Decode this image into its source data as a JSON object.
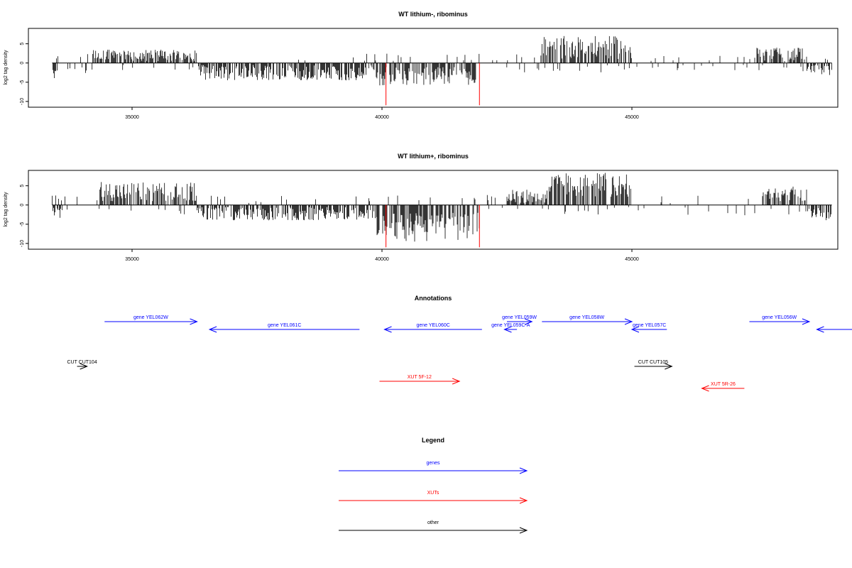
{
  "colors": {
    "gene": "#0000ff",
    "xut": "#ff0000",
    "other": "#000000",
    "signal": "#000000",
    "highlight": "#ff0000"
  },
  "chart_data": [
    {
      "type": "bar",
      "title": "WT lithium-, ribominus",
      "ylabel": "log2 tag density",
      "xlim": [
        33200,
        49300
      ],
      "ylim": [
        -11.5,
        9
      ],
      "yticks": [
        5,
        0,
        -5,
        -10
      ],
      "xticks": [
        35000,
        40000,
        45000
      ],
      "segments": [
        {
          "from": 33400,
          "to": 33500,
          "mode": "neg",
          "sMin": 0.5,
          "sMax": 4
        },
        {
          "from": 33500,
          "to": 34200,
          "mode": "sparse",
          "sMin": 0.5,
          "sMax": 3
        },
        {
          "from": 34200,
          "to": 36300,
          "mode": "pos",
          "sMin": 0.5,
          "sMax": 3.5
        },
        {
          "from": 36300,
          "to": 39800,
          "mode": "neg",
          "sMin": 0.5,
          "sMax": 4.5
        },
        {
          "from": 39800,
          "to": 41900,
          "mode": "neg",
          "sMin": 1,
          "sMax": 6
        },
        {
          "from": 41900,
          "to": 43200,
          "mode": "sparse",
          "sMin": 0.5,
          "sMax": 2.5
        },
        {
          "from": 43200,
          "to": 45000,
          "mode": "pos",
          "sMin": 1,
          "sMax": 7
        },
        {
          "from": 45000,
          "to": 47500,
          "mode": "sparse",
          "sMin": 0.5,
          "sMax": 2
        },
        {
          "from": 47500,
          "to": 48500,
          "mode": "pos",
          "sMin": 0.5,
          "sMax": 4
        },
        {
          "from": 48500,
          "to": 49000,
          "mode": "neg",
          "sMin": 0.5,
          "sMax": 4
        }
      ],
      "highlights": [
        {
          "x": 40080,
          "y": -11
        },
        {
          "x": 41950,
          "y": -11
        }
      ]
    },
    {
      "type": "bar",
      "title": "WT lithium+, ribominus",
      "ylabel": "log2 tag density",
      "xlim": [
        33200,
        49300
      ],
      "ylim": [
        -11.5,
        9
      ],
      "yticks": [
        5,
        0,
        -5,
        -10
      ],
      "xticks": [
        35000,
        40000,
        45000
      ],
      "segments": [
        {
          "from": 33400,
          "to": 33600,
          "mode": "neg",
          "sMin": 0.5,
          "sMax": 5
        },
        {
          "from": 33600,
          "to": 34300,
          "mode": "sparse",
          "sMin": 0.5,
          "sMax": 2.5
        },
        {
          "from": 34300,
          "to": 36300,
          "mode": "pos",
          "sMin": 1,
          "sMax": 6
        },
        {
          "from": 36300,
          "to": 39900,
          "mode": "neg",
          "sMin": 0.5,
          "sMax": 4
        },
        {
          "from": 39900,
          "to": 41950,
          "mode": "neg",
          "sMin": 2,
          "sMax": 10
        },
        {
          "from": 41950,
          "to": 42500,
          "mode": "sparse",
          "sMin": 0.5,
          "sMax": 3
        },
        {
          "from": 42500,
          "to": 43300,
          "mode": "pos",
          "sMin": 0.5,
          "sMax": 4
        },
        {
          "from": 43300,
          "to": 45000,
          "mode": "pos",
          "sMin": 2,
          "sMax": 8.5
        },
        {
          "from": 45000,
          "to": 47600,
          "mode": "sparse",
          "sMin": 0.5,
          "sMax": 3
        },
        {
          "from": 47600,
          "to": 48500,
          "mode": "pos",
          "sMin": 1,
          "sMax": 5
        },
        {
          "from": 48500,
          "to": 49000,
          "mode": "neg",
          "sMin": 0.5,
          "sMax": 4
        }
      ],
      "highlights": [
        {
          "x": 40080,
          "y": -11
        },
        {
          "x": 41950,
          "y": -11
        }
      ]
    }
  ],
  "annotations": {
    "title": "Annotations",
    "features": [
      {
        "label": "gene YEL062W",
        "start": 34450,
        "end": 36300,
        "strand": "+",
        "type": "gene",
        "row": 0
      },
      {
        "label": "gene YEL061C",
        "start": 36550,
        "end": 39550,
        "strand": "-",
        "type": "gene",
        "row": 1
      },
      {
        "label": "gene YEL060C",
        "start": 40050,
        "end": 42000,
        "strand": "-",
        "type": "gene",
        "row": 1
      },
      {
        "label": "gene YEL059C-A",
        "start": 42450,
        "end": 42700,
        "strand": "-",
        "type": "gene",
        "row": 1
      },
      {
        "label": "gene YEL059W",
        "start": 42500,
        "end": 43000,
        "strand": "+",
        "type": "gene",
        "row": 0
      },
      {
        "label": "gene YEL058W",
        "start": 43200,
        "end": 45000,
        "strand": "+",
        "type": "gene",
        "row": 0
      },
      {
        "label": "gene YEL057C",
        "start": 45000,
        "end": 45700,
        "strand": "-",
        "type": "gene",
        "row": 1
      },
      {
        "label": "gene YEL056W",
        "start": 47350,
        "end": 48550,
        "strand": "+",
        "type": "gene",
        "row": 0
      },
      {
        "label": "",
        "start": 48700,
        "end": 49500,
        "strand": "-",
        "type": "gene",
        "row": 1
      },
      {
        "label": "CUT CUT104",
        "start": 33900,
        "end": 34100,
        "strand": "+",
        "type": "other",
        "row": 2
      },
      {
        "label": "CUT CUT105",
        "start": 45050,
        "end": 45800,
        "strand": "+",
        "type": "other",
        "row": 2
      },
      {
        "label": "XUT 5F-12",
        "start": 39950,
        "end": 41550,
        "strand": "+",
        "type": "xut",
        "row": 3
      },
      {
        "label": "XUT 5R-26",
        "start": 46400,
        "end": 47250,
        "strand": "-",
        "type": "xut",
        "row": 4
      }
    ]
  },
  "legend": {
    "title": "Legend",
    "items": [
      {
        "label": "genes",
        "type": "gene"
      },
      {
        "label": "XUTs",
        "type": "xut"
      },
      {
        "label": "other",
        "type": "other"
      }
    ]
  }
}
